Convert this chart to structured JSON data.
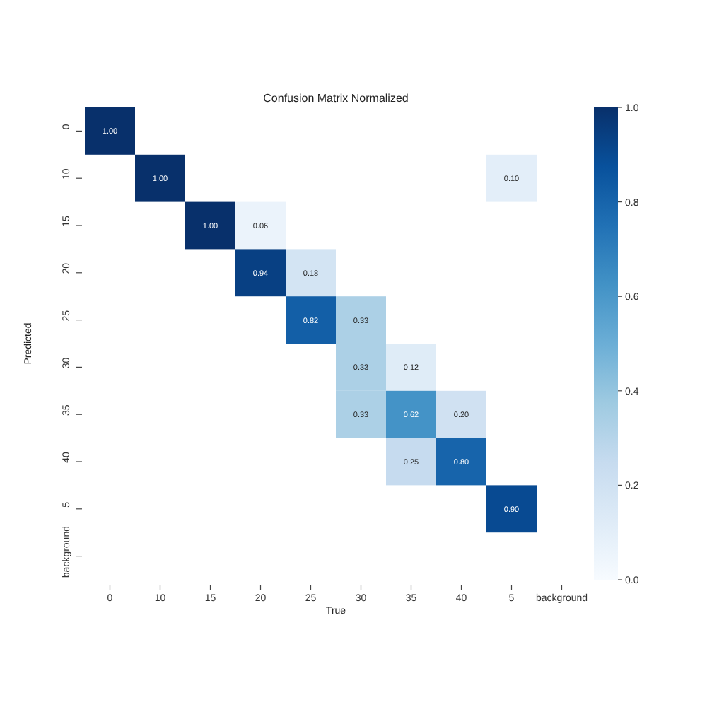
{
  "chart_data": {
    "type": "heatmap",
    "title": "Confusion Matrix Normalized",
    "xlabel": "True",
    "ylabel": "Predicted",
    "categories": [
      "0",
      "10",
      "15",
      "20",
      "25",
      "30",
      "35",
      "40",
      "5",
      "background"
    ],
    "y_categories": [
      "0",
      "10",
      "15",
      "20",
      "25",
      "30",
      "35",
      "40",
      "5",
      "background"
    ],
    "cells": [
      [
        1.0,
        null,
        null,
        null,
        null,
        null,
        null,
        null,
        null,
        null
      ],
      [
        null,
        1.0,
        null,
        null,
        null,
        null,
        null,
        null,
        0.1,
        null
      ],
      [
        null,
        null,
        1.0,
        0.06,
        null,
        null,
        null,
        null,
        null,
        null
      ],
      [
        null,
        null,
        null,
        0.94,
        0.18,
        null,
        null,
        null,
        null,
        null
      ],
      [
        null,
        null,
        null,
        null,
        0.82,
        0.33,
        null,
        null,
        null,
        null
      ],
      [
        null,
        null,
        null,
        null,
        null,
        0.33,
        0.12,
        null,
        null,
        null
      ],
      [
        null,
        null,
        null,
        null,
        null,
        0.33,
        0.62,
        0.2,
        null,
        null
      ],
      [
        null,
        null,
        null,
        null,
        null,
        null,
        0.25,
        0.8,
        null,
        null
      ],
      [
        null,
        null,
        null,
        null,
        null,
        null,
        null,
        null,
        0.9,
        null
      ],
      [
        null,
        null,
        null,
        null,
        null,
        null,
        null,
        null,
        null,
        null
      ]
    ],
    "cell_labels": [
      [
        "1.00",
        null,
        null,
        null,
        null,
        null,
        null,
        null,
        null,
        null
      ],
      [
        null,
        "1.00",
        null,
        null,
        null,
        null,
        null,
        null,
        "0.10",
        null
      ],
      [
        null,
        null,
        "1.00",
        "0.06",
        null,
        null,
        null,
        null,
        null,
        null
      ],
      [
        null,
        null,
        null,
        "0.94",
        "0.18",
        null,
        null,
        null,
        null,
        null
      ],
      [
        null,
        null,
        null,
        null,
        "0.82",
        "0.33",
        null,
        null,
        null,
        null
      ],
      [
        null,
        null,
        null,
        null,
        null,
        "0.33",
        "0.12",
        null,
        null,
        null
      ],
      [
        null,
        null,
        null,
        null,
        null,
        "0.33",
        "0.62",
        "0.20",
        null,
        null
      ],
      [
        null,
        null,
        null,
        null,
        null,
        null,
        "0.25",
        "0.80",
        null,
        null
      ],
      [
        null,
        null,
        null,
        null,
        null,
        null,
        null,
        null,
        "0.90",
        null
      ],
      [
        null,
        null,
        null,
        null,
        null,
        null,
        null,
        null,
        null,
        null
      ]
    ],
    "clim": [
      0,
      1
    ],
    "cticks": [
      {
        "value": 0,
        "label": "0.0"
      },
      0.2,
      0.4,
      0.6,
      0.8,
      {
        "value": 1,
        "label": "1.0"
      }
    ]
  }
}
